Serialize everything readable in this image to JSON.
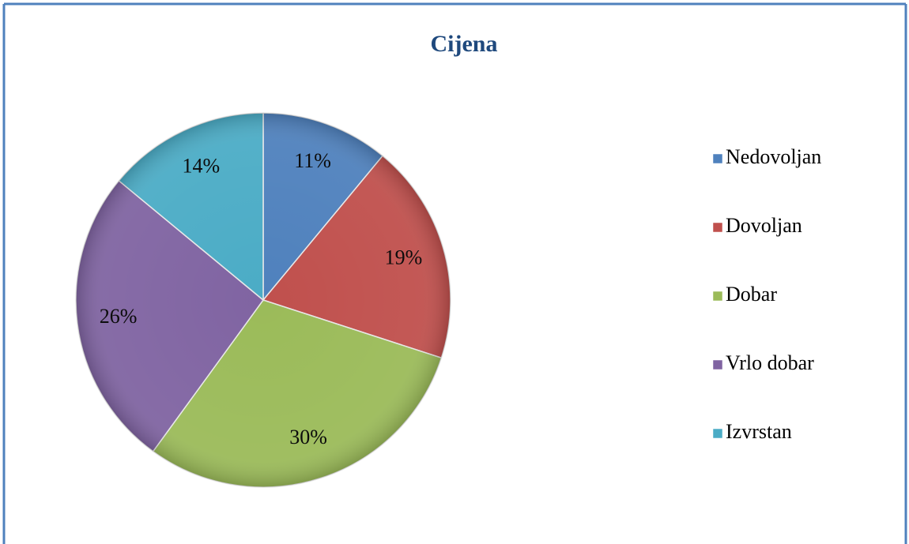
{
  "chart_data": {
    "type": "pie",
    "title": "Cijena",
    "categories": [
      "Nedovoljan",
      "Dovoljan",
      "Dobar",
      "Vrlo dobar",
      "Izvrstan"
    ],
    "values": [
      11,
      19,
      30,
      26,
      14
    ],
    "value_labels": [
      "11%",
      "19%",
      "30%",
      "26%",
      "14%"
    ],
    "colors": [
      "#4f81bd",
      "#c0504d",
      "#9bbb59",
      "#8064a2",
      "#4bacc6"
    ],
    "legend": "right"
  }
}
